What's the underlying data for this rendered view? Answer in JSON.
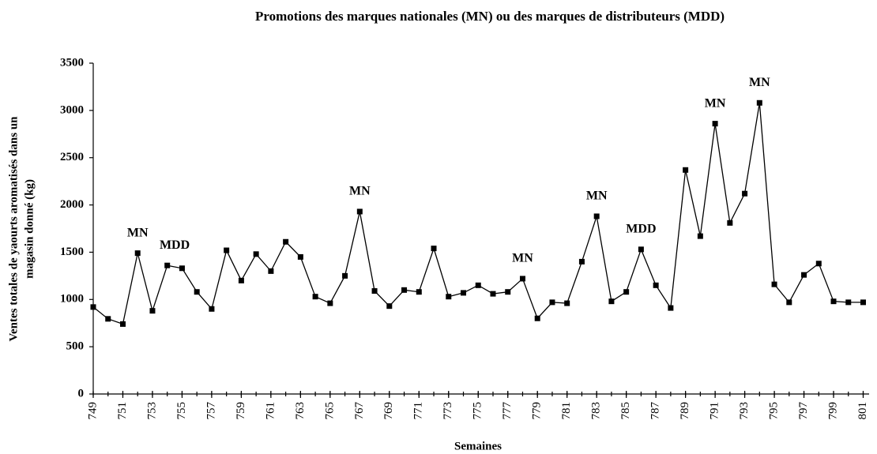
{
  "chart_data": {
    "type": "line",
    "title": "Promotions des marques nationales (MN) ou des marques de distributeurs (MDD)",
    "xlabel": "Semaines",
    "ylabel": [
      "Ventes totales de yaourts aromatisés dans un",
      "magasin donné (kg)"
    ],
    "x": [
      749,
      750,
      751,
      752,
      753,
      754,
      755,
      756,
      757,
      758,
      759,
      760,
      761,
      762,
      763,
      764,
      765,
      766,
      767,
      768,
      769,
      770,
      771,
      772,
      773,
      774,
      775,
      776,
      777,
      778,
      779,
      780,
      781,
      782,
      783,
      784,
      785,
      786,
      787,
      788,
      789,
      790,
      791,
      792,
      793,
      794,
      795,
      796,
      797,
      798,
      799,
      800,
      801
    ],
    "series": [
      {
        "name": "Ventes",
        "color": "#000000",
        "values": [
          920,
          795,
          740,
          1490,
          880,
          1360,
          1330,
          1080,
          900,
          1520,
          1200,
          1480,
          1300,
          1610,
          1450,
          1030,
          960,
          1250,
          1930,
          1090,
          930,
          1100,
          1080,
          1540,
          1030,
          1070,
          1150,
          1060,
          1080,
          1220,
          800,
          970,
          960,
          1400,
          1880,
          980,
          1080,
          1530,
          1150,
          910,
          2370,
          1670,
          2860,
          1810,
          2120,
          3080,
          1160,
          970,
          1260,
          1380,
          980,
          970,
          970
        ]
      }
    ],
    "xlim": [
      749,
      801.4
    ],
    "xticks": [
      749,
      751,
      753,
      755,
      757,
      759,
      761,
      763,
      765,
      767,
      769,
      771,
      773,
      775,
      777,
      779,
      781,
      783,
      785,
      787,
      789,
      791,
      793,
      795,
      797,
      799,
      801
    ],
    "ylim": [
      0,
      3500
    ],
    "yticks": [
      0,
      500,
      1000,
      1500,
      2000,
      2500,
      3000,
      3500
    ],
    "grid": false,
    "annotations": [
      {
        "text": "MN",
        "x": 752,
        "y": 1490
      },
      {
        "text": "MDD",
        "x": 754.5,
        "y": 1360
      },
      {
        "text": "MN",
        "x": 767,
        "y": 1930
      },
      {
        "text": "MN",
        "x": 778,
        "y": 1220
      },
      {
        "text": "MN",
        "x": 783,
        "y": 1880
      },
      {
        "text": "MDD",
        "x": 786,
        "y": 1530
      },
      {
        "text": "MN",
        "x": 791,
        "y": 2860
      },
      {
        "text": "MN",
        "x": 794,
        "y": 3080
      }
    ]
  }
}
